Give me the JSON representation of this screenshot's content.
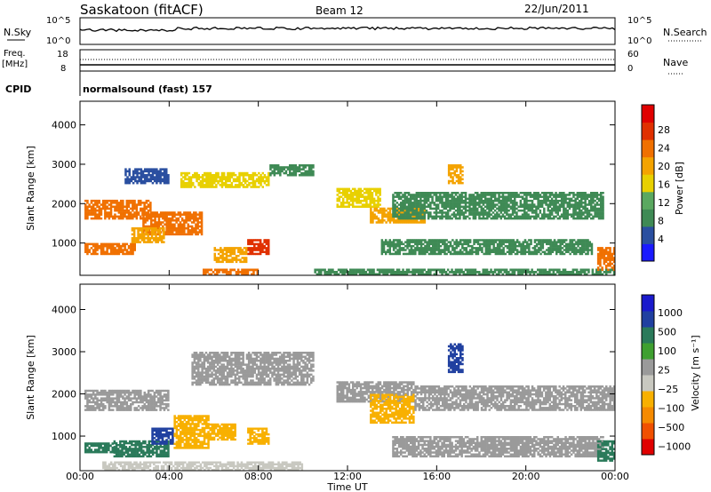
{
  "header": {
    "station": "Saskatoon (fitACF)",
    "beam": "Beam 12",
    "date": "22/Jun/2011"
  },
  "nsky_panel": {
    "left_label": "N.Sky",
    "left_ticks": [
      "10^5",
      "10^0"
    ],
    "right_ticks": [
      "10^5",
      "10^0"
    ],
    "right_label": "N.Search"
  },
  "freq_panel": {
    "left_label_line1": "Freq.",
    "left_label_line2": "[MHz]",
    "left_ticks": [
      "18",
      "8"
    ],
    "right_ticks": [
      "60",
      "0"
    ],
    "right_label": "Nave"
  },
  "cpid_panel": {
    "label": "CPID",
    "text": "normalsound (fast) 157"
  },
  "colors": {
    "power_scale": [
      "#1a1aff",
      "#2a4fa0",
      "#3f8a55",
      "#5aa860",
      "#e8d000",
      "#f4a300",
      "#f07000",
      "#e03000",
      "#e00000"
    ],
    "velocity_scale": [
      "#e00000",
      "#f05000",
      "#f58a00",
      "#f8b000",
      "#c8c8c0",
      "#9a9a9a",
      "#3fa030",
      "#2a7a5a",
      "#2040a0",
      "#1a1acc"
    ]
  },
  "chart_data": [
    {
      "type": "heatmap",
      "panel": "power",
      "ylabel": "Slant Range [km]",
      "ylim": [
        180,
        4600
      ],
      "y_ticks": [
        "1000",
        "2000",
        "3000",
        "4000"
      ],
      "xlim": [
        0,
        24
      ],
      "colorbar_label": "Power [dB]",
      "colorbar_ticks": [
        "28",
        "24",
        "20",
        "16",
        "12",
        "8",
        "4"
      ],
      "colorbar_range": [
        0,
        32
      ],
      "regions": [
        {
          "t0": 0.2,
          "t1": 3.2,
          "r0": 1600,
          "r1": 2100,
          "level": 22
        },
        {
          "t0": 2.8,
          "t1": 5.5,
          "r0": 1200,
          "r1": 1800,
          "level": 24
        },
        {
          "t0": 0.2,
          "t1": 2.5,
          "r0": 700,
          "r1": 1000,
          "level": 24
        },
        {
          "t0": 2.3,
          "t1": 3.8,
          "r0": 1000,
          "r1": 1400,
          "level": 20
        },
        {
          "t0": 7.5,
          "t1": 8.5,
          "r0": 700,
          "r1": 1100,
          "level": 28
        },
        {
          "t0": 6.0,
          "t1": 7.5,
          "r0": 500,
          "r1": 900,
          "level": 18
        },
        {
          "t0": 5.5,
          "t1": 8.0,
          "r0": 180,
          "r1": 350,
          "level": 24
        },
        {
          "t0": 4.5,
          "t1": 8.5,
          "r0": 2400,
          "r1": 2800,
          "level": 16
        },
        {
          "t0": 8.5,
          "t1": 10.5,
          "r0": 2700,
          "r1": 3000,
          "level": 8
        },
        {
          "t0": 11.5,
          "t1": 13.5,
          "r0": 1900,
          "r1": 2400,
          "level": 16
        },
        {
          "t0": 13.0,
          "t1": 15.5,
          "r0": 1500,
          "r1": 1900,
          "level": 20
        },
        {
          "t0": 16.5,
          "t1": 17.2,
          "r0": 2500,
          "r1": 3000,
          "level": 18
        },
        {
          "t0": 14.0,
          "t1": 23.5,
          "r0": 1600,
          "r1": 2300,
          "level": 10
        },
        {
          "t0": 13.5,
          "t1": 23.0,
          "r0": 700,
          "r1": 1100,
          "level": 8
        },
        {
          "t0": 10.5,
          "t1": 24.0,
          "r0": 180,
          "r1": 350,
          "level": 10
        },
        {
          "t0": 23.2,
          "t1": 24.0,
          "r0": 300,
          "r1": 900,
          "level": 24
        },
        {
          "t0": 2.0,
          "t1": 4.0,
          "r0": 2500,
          "r1": 2900,
          "level": 6
        }
      ]
    },
    {
      "type": "heatmap",
      "panel": "velocity",
      "ylabel": "Slant Range [km]",
      "ylim": [
        180,
        4600
      ],
      "y_ticks": [
        "1000",
        "2000",
        "3000",
        "4000"
      ],
      "xlim": [
        0,
        24
      ],
      "xlabel": "Time UT",
      "x_ticks": [
        "00:00",
        "04:00",
        "08:00",
        "12:00",
        "16:00",
        "20:00",
        "00:00"
      ],
      "colorbar_label": "Velocity [m s⁻¹]",
      "colorbar_ticks": [
        "1000",
        "500",
        "100",
        "25",
        "−25",
        "−100",
        "−500",
        "−1000"
      ],
      "regions": [
        {
          "t0": 0.2,
          "t1": 1.5,
          "r0": 600,
          "r1": 850,
          "vel": 150
        },
        {
          "t0": 1.5,
          "t1": 4.0,
          "r0": 500,
          "r1": 900,
          "vel": 400
        },
        {
          "t0": 3.2,
          "t1": 4.2,
          "r0": 800,
          "r1": 1200,
          "vel": 900
        },
        {
          "t0": 4.2,
          "t1": 5.8,
          "r0": 700,
          "r1": 1500,
          "vel": -300
        },
        {
          "t0": 5.8,
          "t1": 7.0,
          "r0": 900,
          "r1": 1300,
          "vel": -200
        },
        {
          "t0": 7.5,
          "t1": 8.5,
          "r0": 800,
          "r1": 1200,
          "vel": -400
        },
        {
          "t0": 5.0,
          "t1": 10.5,
          "r0": 2200,
          "r1": 3000,
          "vel": 0
        },
        {
          "t0": 0.2,
          "t1": 4.0,
          "r0": 1600,
          "r1": 2100,
          "vel": 0
        },
        {
          "t0": 11.5,
          "t1": 15.0,
          "r0": 1800,
          "r1": 2300,
          "vel": 0
        },
        {
          "t0": 13.0,
          "t1": 15.0,
          "r0": 1300,
          "r1": 2000,
          "vel": -150
        },
        {
          "t0": 15.0,
          "t1": 24.0,
          "r0": 1600,
          "r1": 2200,
          "vel": 0
        },
        {
          "t0": 16.5,
          "t1": 17.2,
          "r0": 2500,
          "r1": 3200,
          "vel": 800
        },
        {
          "t0": 14.0,
          "t1": 23.5,
          "r0": 500,
          "r1": 1000,
          "vel": 10
        },
        {
          "t0": 1.0,
          "t1": 10.0,
          "r0": 180,
          "r1": 400,
          "vel": -30
        },
        {
          "t0": 23.2,
          "t1": 24.0,
          "r0": 400,
          "r1": 900,
          "vel": 300
        }
      ]
    }
  ]
}
